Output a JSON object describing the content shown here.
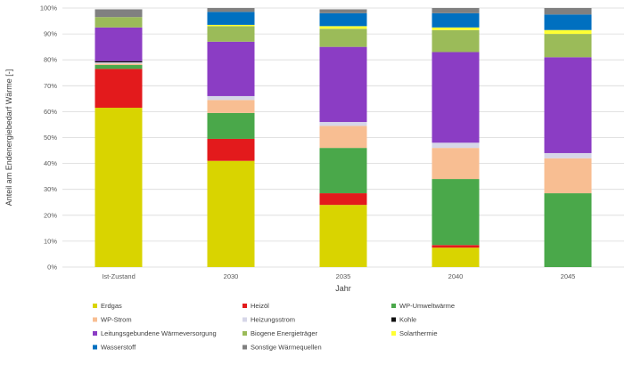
{
  "chart_data": {
    "type": "bar",
    "stacked": true,
    "title": "",
    "xlabel": "Jahr",
    "ylabel": "Anteil am Endenergiebedarf Wärme [-]",
    "ylim": [
      0,
      100
    ],
    "yticks": [
      "0%",
      "10%",
      "20%",
      "30%",
      "40%",
      "50%",
      "60%",
      "70%",
      "80%",
      "90%",
      "100%"
    ],
    "grid": true,
    "legend_position": "bottom",
    "categories": [
      "Ist-Zustand",
      "2030",
      "2035",
      "2040",
      "2045"
    ],
    "series": [
      {
        "name": "Erdgas",
        "color": "#d9d400",
        "values": [
          61.5,
          41,
          24,
          7.5,
          0
        ]
      },
      {
        "name": "Heizöl",
        "color": "#e31a1c",
        "values": [
          15,
          8.5,
          4.5,
          1,
          0
        ]
      },
      {
        "name": "WP-Umweltwärme",
        "color": "#4aa84a",
        "values": [
          1.5,
          10,
          17.5,
          25.5,
          28.5
        ]
      },
      {
        "name": "WP-Strom",
        "color": "#f8be92",
        "values": [
          0.5,
          5,
          8.5,
          12,
          13.5
        ]
      },
      {
        "name": "Heizungsstrom",
        "color": "#d6d6e8",
        "values": [
          0.5,
          1.5,
          1.5,
          2,
          2
        ]
      },
      {
        "name": "Kohle",
        "color": "#111111",
        "values": [
          0.5,
          0,
          0,
          0,
          0
        ]
      },
      {
        "name": "Leitungsgebundene Wärmeversorgung",
        "color": "#8b3dc4",
        "values": [
          13,
          21,
          29,
          35,
          37
        ]
      },
      {
        "name": "Biogene Energieträger",
        "color": "#9bbb59",
        "values": [
          4,
          6,
          7,
          8.5,
          9
        ]
      },
      {
        "name": "Solarthermie",
        "color": "#ffff33",
        "values": [
          0,
          0.5,
          1,
          1,
          1.5
        ]
      },
      {
        "name": "Wasserstoff",
        "color": "#0070c0",
        "values": [
          0,
          5,
          5,
          5.5,
          6
        ]
      },
      {
        "name": "Sonstige Wärmequellen",
        "color": "#808080",
        "values": [
          3,
          1.5,
          1.5,
          2,
          2.5
        ]
      }
    ]
  }
}
